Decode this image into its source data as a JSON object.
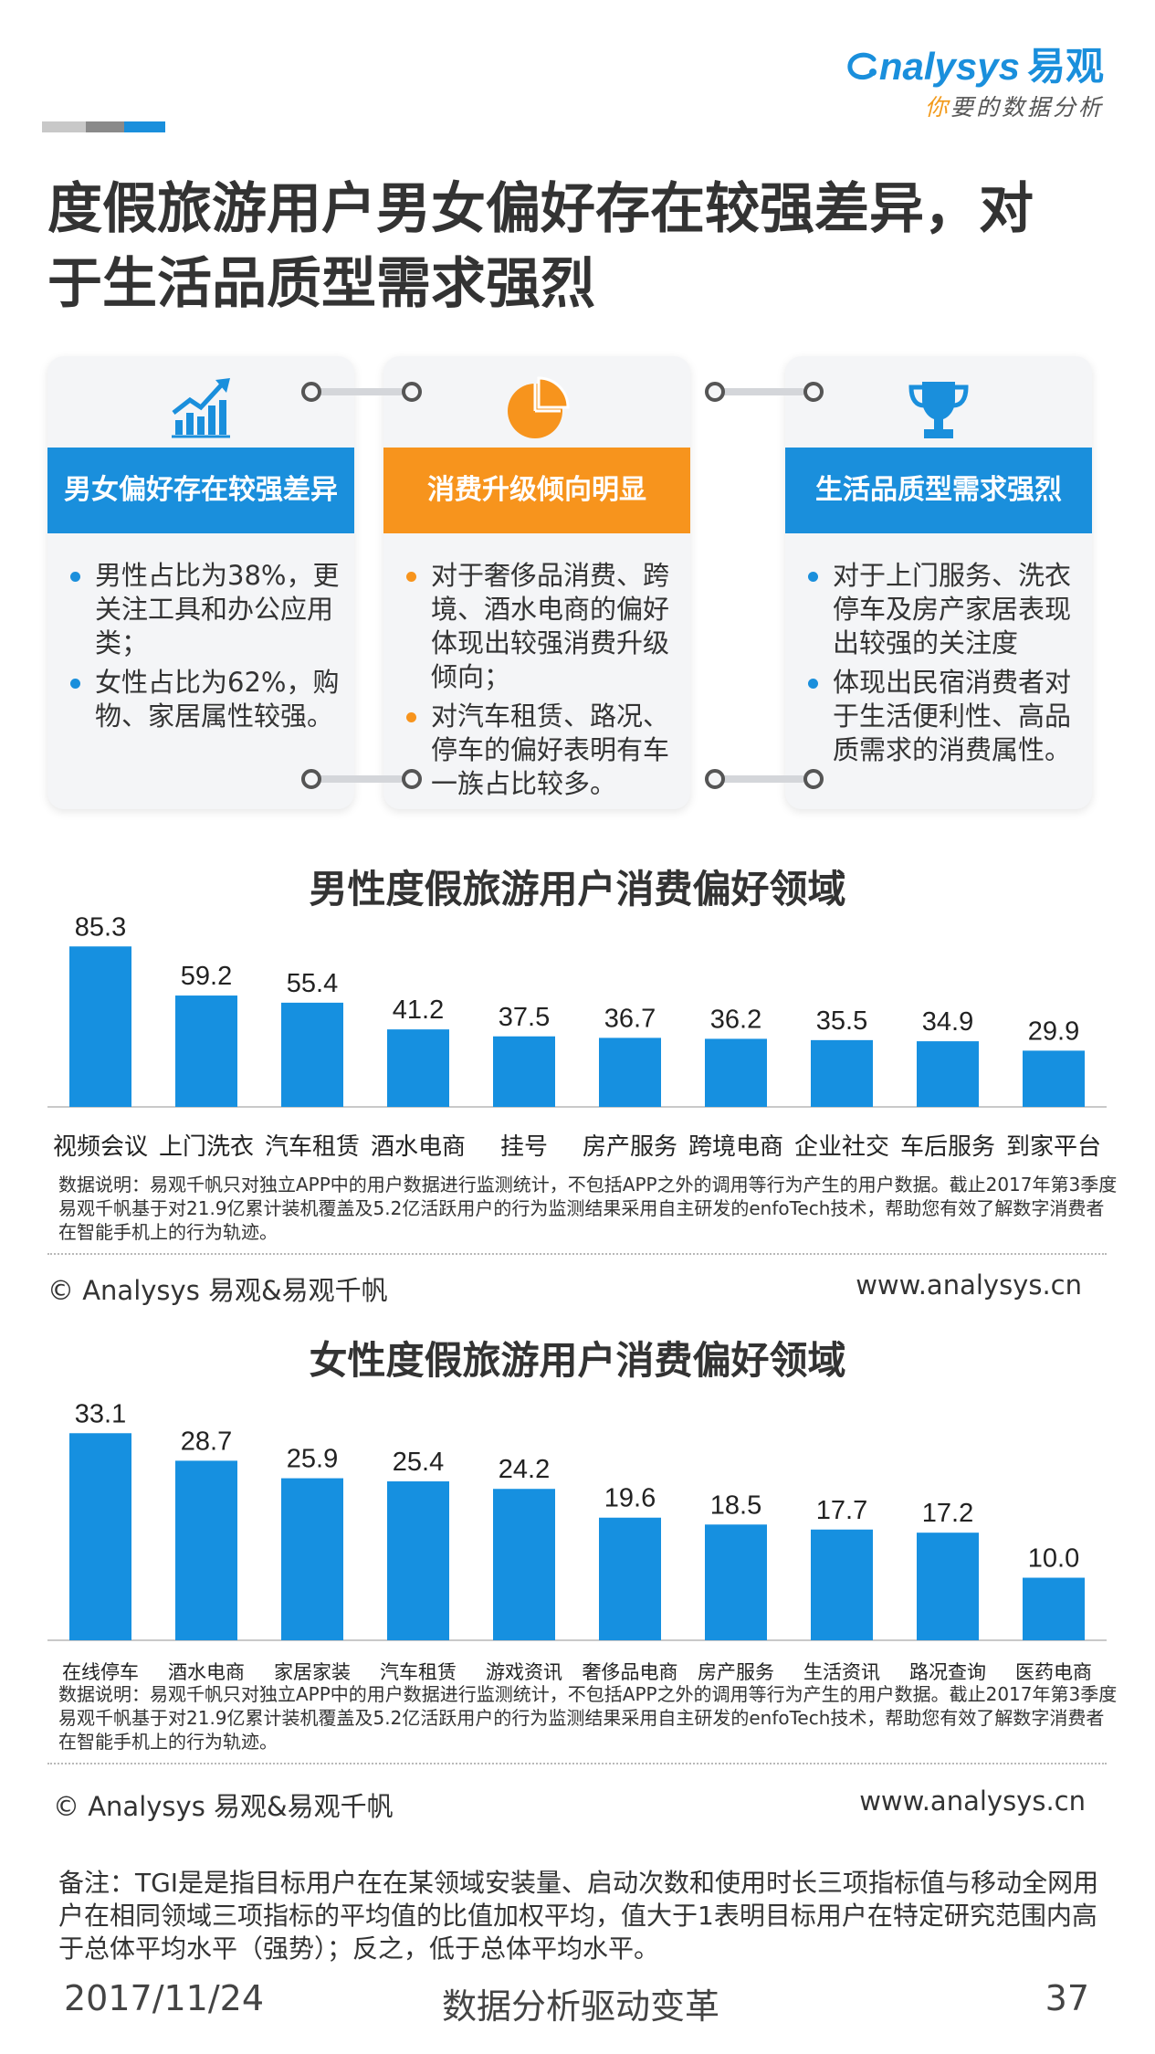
{
  "header": {
    "logo_text": "nalysys",
    "logo_cn": "易观",
    "logo_tagline_first": "你",
    "logo_tagline_rest": "要的数据分析",
    "title": "度假旅游用户男女偏好存在较强差异，对于生活品质型需求强烈"
  },
  "colors": {
    "blue": "#1a8fdc",
    "orange": "#f7941d",
    "bar": "#1690e0",
    "brand": "#1a8fdc"
  },
  "cards": [
    {
      "icon": "bar-chart-trend-icon",
      "heading": "男女偏好存在较强差异",
      "color": "#1a8fdc",
      "items": [
        "男性占比为38%，更关注工具和办公应用类；",
        "女性占比为62%，购物、家居属性较强。"
      ]
    },
    {
      "icon": "pie-chart-icon",
      "heading": "消费升级倾向明显",
      "color": "#f7941d",
      "items": [
        "对于奢侈品消费、跨境、酒水电商的偏好体现出较强消费升级倾向；",
        "对汽车租赁、路况、停车的偏好表明有车一族占比较多。"
      ]
    },
    {
      "icon": "trophy-icon",
      "heading": "生活品质型需求强烈",
      "color": "#1a8fdc",
      "items": [
        "对于上门服务、洗衣停车及房产家居表现出较强的关注度",
        "体现出民宿消费者对于生活便利性、高品质需求的消费属性。"
      ]
    }
  ],
  "chart_data": [
    {
      "type": "bar",
      "title": "男性度假旅游用户消费偏好领域",
      "categories": [
        "视频会议",
        "上门洗衣",
        "汽车租赁",
        "酒水电商",
        "挂号",
        "房产服务",
        "跨境电商",
        "企业社交",
        "车后服务",
        "到家平台"
      ],
      "values": [
        85.3,
        59.2,
        55.4,
        41.2,
        37.5,
        36.7,
        36.2,
        35.5,
        34.9,
        29.9
      ],
      "ylim": [
        0,
        100
      ],
      "grid": false,
      "legend": "none",
      "xlabel": "",
      "ylabel": ""
    },
    {
      "type": "bar",
      "title": "女性度假旅游用户消费偏好领域",
      "categories": [
        "在线停车",
        "酒水电商",
        "家居家装",
        "汽车租赁",
        "游戏资讯",
        "奢侈品电商",
        "房产服务",
        "生活资讯",
        "路况查询",
        "医药电商"
      ],
      "values": [
        33.1,
        28.7,
        25.9,
        25.4,
        24.2,
        19.6,
        18.5,
        17.7,
        17.2,
        10.0
      ],
      "ylim": [
        0,
        40
      ],
      "grid": false,
      "legend": "none",
      "xlabel": "",
      "ylabel": ""
    }
  ],
  "chart1_note": "数据说明：易观千帆只对独立APP中的用户数据进行监测统计，不包括APP之外的调用等行为产生的用户数据。截止2017年第3季度易观千帆基于对21.9亿累计装机覆盖及5.2亿活跃用户的行为监测结果采用自主研发的enfoTech技术，帮助您有效了解数字消费者在智能手机上的行为轨迹。",
  "chart1_copyright": "© Analysys 易观&易观千帆",
  "chart1_url": "www.analysys.cn",
  "chart2_note": "数据说明：易观千帆只对独立APP中的用户数据进行监测统计，不包括APP之外的调用等行为产生的用户数据。截止2017年第3季度易观千帆基于对21.9亿累计装机覆盖及5.2亿活跃用户的行为监测结果采用自主研发的enfoTech技术，帮助您有效了解数字消费者在智能手机上的行为轨迹。",
  "chart2_copyright": "© Analysys 易观&易观千帆",
  "chart2_url": "www.analysys.cn",
  "remark": "备注：TGI是是指目标用户在在某领域安装量、启动次数和使用时长三项指标值与移动全网用户在相同领域三项指标的平均值的比值加权平均，值大于1表明目标用户在特定研究范围内高于总体平均水平（强势）；反之，低于总体平均水平。",
  "footer": {
    "date": "2017/11/24",
    "slogan": "数据分析驱动变革",
    "page": "37"
  }
}
